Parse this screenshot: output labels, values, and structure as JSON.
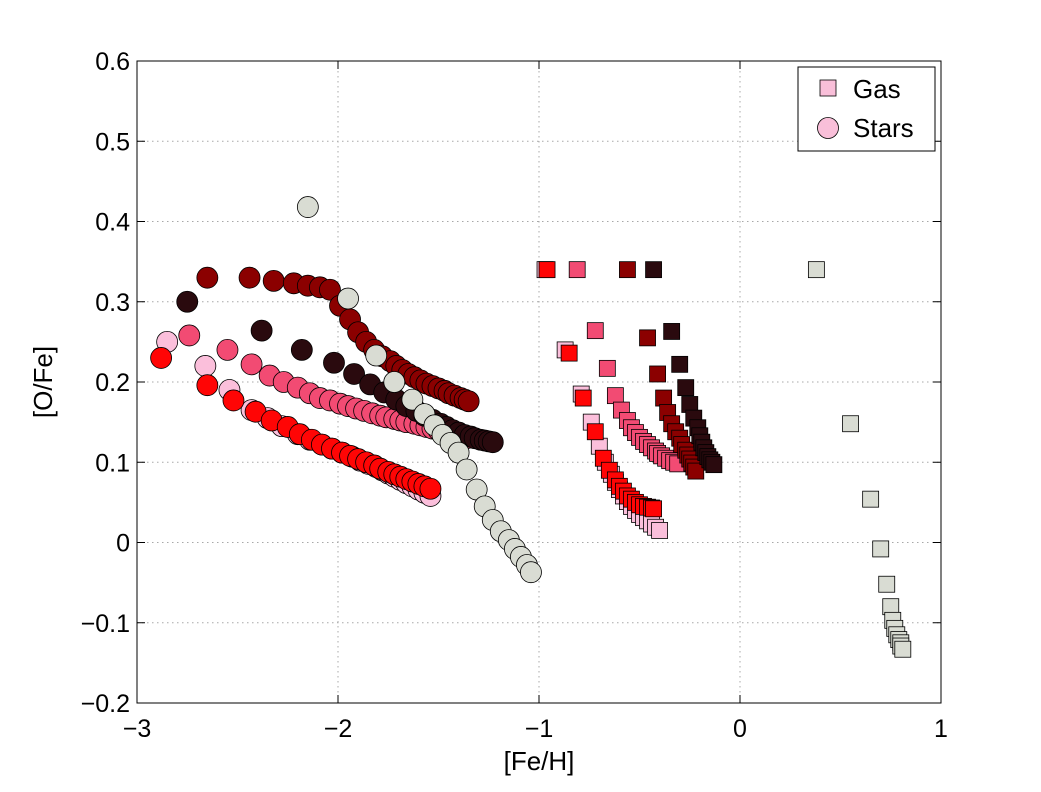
{
  "chart_data": {
    "type": "scatter",
    "title": "",
    "xlabel": "[Fe/H]",
    "ylabel": "[O/Fe]",
    "xlim": [
      -3,
      1
    ],
    "ylim": [
      -0.2,
      0.6
    ],
    "xticks": [
      -3,
      -2,
      -1,
      0,
      1
    ],
    "xtick_labels": [
      "−3",
      "−2",
      "−1",
      "0",
      "1"
    ],
    "yticks": [
      -0.2,
      -0.1,
      0,
      0.1,
      0.2,
      0.3,
      0.4,
      0.5,
      0.6
    ],
    "ytick_labels": [
      "−0.2",
      "−0.1",
      "0",
      "0.1",
      "0.2",
      "0.3",
      "0.4",
      "0.5",
      "0.6"
    ],
    "grid": true,
    "legend": {
      "placement": "top-right",
      "entries": [
        {
          "label": "Gas",
          "marker": "square",
          "color": "#f9bfd9"
        },
        {
          "label": "Stars",
          "marker": "circle",
          "color": "#f9bfd9"
        }
      ]
    },
    "series": [
      {
        "marker": "circle",
        "color": "#fbbfdb",
        "x": [
          -2.85,
          -2.66,
          -2.54,
          -2.43,
          -2.35,
          -2.28,
          -2.2,
          -2.14,
          -2.08,
          -2.03,
          -1.98,
          -1.93,
          -1.89,
          -1.85,
          -1.81,
          -1.78,
          -1.75,
          -1.72,
          -1.69,
          -1.66,
          -1.63,
          -1.6,
          -1.57,
          -1.54
        ],
        "y": [
          0.25,
          0.22,
          0.19,
          0.165,
          0.155,
          0.145,
          0.135,
          0.128,
          0.122,
          0.117,
          0.112,
          0.107,
          0.102,
          0.098,
          0.094,
          0.09,
          0.086,
          0.082,
          0.078,
          0.074,
          0.07,
          0.066,
          0.062,
          0.058
        ]
      },
      {
        "marker": "circle",
        "color": "#ff0505",
        "x": [
          -2.88,
          -2.65,
          -2.52,
          -2.41,
          -2.33,
          -2.25,
          -2.19,
          -2.13,
          -2.08,
          -2.03,
          -1.98,
          -1.94,
          -1.9,
          -1.86,
          -1.82,
          -1.79,
          -1.75,
          -1.72,
          -1.69,
          -1.66,
          -1.63,
          -1.6,
          -1.57,
          -1.54
        ],
        "y": [
          0.23,
          0.196,
          0.177,
          0.163,
          0.152,
          0.144,
          0.135,
          0.128,
          0.122,
          0.117,
          0.112,
          0.108,
          0.104,
          0.1,
          0.096,
          0.092,
          0.088,
          0.085,
          0.082,
          0.079,
          0.076,
          0.073,
          0.07,
          0.067
        ]
      },
      {
        "marker": "circle",
        "color": "#f24b73",
        "x": [
          -2.74,
          -2.55,
          -2.43,
          -2.34,
          -2.27,
          -2.2,
          -2.14,
          -2.09,
          -2.04,
          -1.99,
          -1.95,
          -1.91,
          -1.87,
          -1.83,
          -1.79,
          -1.76,
          -1.72,
          -1.69,
          -1.66,
          -1.62,
          -1.59,
          -1.56,
          -1.53,
          -1.5,
          -1.47,
          -1.44,
          -1.41,
          -1.38,
          -1.36
        ],
        "y": [
          0.258,
          0.24,
          0.222,
          0.208,
          0.2,
          0.193,
          0.186,
          0.18,
          0.177,
          0.173,
          0.17,
          0.167,
          0.164,
          0.161,
          0.158,
          0.156,
          0.154,
          0.152,
          0.15,
          0.148,
          0.146,
          0.144,
          0.142,
          0.14,
          0.138,
          0.136,
          0.134,
          0.132,
          0.13
        ]
      },
      {
        "marker": "circle",
        "color": "#8b0000",
        "x": [
          -2.65,
          -2.44,
          -2.32,
          -2.22,
          -2.15,
          -2.09,
          -2.04,
          -1.99,
          -1.94,
          -1.9,
          -1.86,
          -1.82,
          -1.78,
          -1.74,
          -1.71,
          -1.68,
          -1.65,
          -1.62,
          -1.59,
          -1.56,
          -1.53,
          -1.5,
          -1.47,
          -1.45,
          -1.42,
          -1.39,
          -1.37,
          -1.35
        ],
        "y": [
          0.33,
          0.33,
          0.326,
          0.323,
          0.32,
          0.318,
          0.315,
          0.295,
          0.278,
          0.262,
          0.25,
          0.24,
          0.232,
          0.226,
          0.22,
          0.215,
          0.21,
          0.206,
          0.202,
          0.198,
          0.195,
          0.192,
          0.189,
          0.186,
          0.183,
          0.18,
          0.178,
          0.176
        ]
      },
      {
        "marker": "circle",
        "color": "#2a0a0e",
        "x": [
          -2.75,
          -2.38,
          -2.18,
          -2.02,
          -1.92,
          -1.84,
          -1.77,
          -1.71,
          -1.66,
          -1.61,
          -1.57,
          -1.53,
          -1.49,
          -1.46,
          -1.43,
          -1.4,
          -1.37,
          -1.34,
          -1.32,
          -1.29,
          -1.27,
          -1.25,
          -1.23
        ],
        "y": [
          0.3,
          0.264,
          0.24,
          0.224,
          0.21,
          0.197,
          0.187,
          0.178,
          0.17,
          0.164,
          0.158,
          0.153,
          0.148,
          0.144,
          0.14,
          0.137,
          0.134,
          0.132,
          0.13,
          0.128,
          0.127,
          0.126,
          0.125
        ]
      },
      {
        "marker": "circle",
        "color": "#d9dcd3",
        "x": [
          -2.15,
          -1.95,
          -1.81,
          -1.72,
          -1.63,
          -1.57,
          -1.52,
          -1.48,
          -1.44,
          -1.4,
          -1.36,
          -1.31,
          -1.27,
          -1.23,
          -1.19,
          -1.15,
          -1.12,
          -1.09,
          -1.06,
          -1.04
        ],
        "y": [
          0.418,
          0.304,
          0.233,
          0.2,
          0.178,
          0.16,
          0.146,
          0.134,
          0.124,
          0.112,
          0.091,
          0.066,
          0.045,
          0.028,
          0.014,
          0.003,
          -0.008,
          -0.018,
          -0.028,
          -0.037
        ]
      },
      {
        "marker": "square",
        "color": "#fbbfdb",
        "x": [
          -0.97,
          -0.87,
          -0.79,
          -0.74,
          -0.7,
          -0.67,
          -0.64,
          -0.62,
          -0.6,
          -0.58,
          -0.56,
          -0.54,
          -0.52,
          -0.5,
          -0.48,
          -0.46,
          -0.44,
          -0.42,
          -0.4
        ],
        "y": [
          0.34,
          0.24,
          0.185,
          0.15,
          0.12,
          0.1,
          0.085,
          0.075,
          0.066,
          0.058,
          0.051,
          0.045,
          0.04,
          0.035,
          0.031,
          0.027,
          0.023,
          0.019,
          0.015
        ]
      },
      {
        "marker": "square",
        "color": "#ff0505",
        "x": [
          -0.96,
          -0.85,
          -0.78,
          -0.72,
          -0.68,
          -0.65,
          -0.62,
          -0.6,
          -0.58,
          -0.56,
          -0.54,
          -0.52,
          -0.5,
          -0.48,
          -0.46,
          -0.44,
          -0.43
        ],
        "y": [
          0.34,
          0.236,
          0.18,
          0.138,
          0.105,
          0.09,
          0.078,
          0.07,
          0.064,
          0.058,
          0.054,
          0.05,
          0.047,
          0.045,
          0.044,
          0.043,
          0.042
        ]
      },
      {
        "marker": "square",
        "color": "#f24b73",
        "x": [
          -0.81,
          -0.72,
          -0.66,
          -0.62,
          -0.59,
          -0.56,
          -0.54,
          -0.52,
          -0.5,
          -0.48,
          -0.46,
          -0.44,
          -0.42,
          -0.41,
          -0.39,
          -0.37,
          -0.35,
          -0.33,
          -0.31
        ],
        "y": [
          0.34,
          0.264,
          0.217,
          0.183,
          0.165,
          0.152,
          0.143,
          0.137,
          0.131,
          0.126,
          0.122,
          0.118,
          0.114,
          0.111,
          0.108,
          0.105,
          0.102,
          0.1,
          0.098
        ]
      },
      {
        "marker": "square",
        "color": "#8b0000",
        "x": [
          -0.56,
          -0.46,
          -0.41,
          -0.38,
          -0.36,
          -0.34,
          -0.32,
          -0.3,
          -0.29,
          -0.27,
          -0.26,
          -0.25,
          -0.24,
          -0.23,
          -0.22
        ],
        "y": [
          0.34,
          0.255,
          0.21,
          0.18,
          0.162,
          0.148,
          0.138,
          0.13,
          0.122,
          0.115,
          0.109,
          0.104,
          0.099,
          0.094,
          0.089
        ]
      },
      {
        "marker": "square",
        "color": "#2a0a0e",
        "x": [
          -0.43,
          -0.34,
          -0.3,
          -0.27,
          -0.25,
          -0.23,
          -0.21,
          -0.2,
          -0.19,
          -0.18,
          -0.17,
          -0.16,
          -0.15,
          -0.14,
          -0.13
        ],
        "y": [
          0.34,
          0.263,
          0.222,
          0.193,
          0.172,
          0.155,
          0.143,
          0.133,
          0.125,
          0.118,
          0.112,
          0.107,
          0.103,
          0.1,
          0.097
        ]
      },
      {
        "marker": "square",
        "color": "#d9dcd3",
        "x": [
          0.38,
          0.55,
          0.65,
          0.7,
          0.73,
          0.75,
          0.76,
          0.77,
          0.78,
          0.79,
          0.8,
          0.8,
          0.81
        ],
        "y": [
          0.34,
          0.148,
          0.054,
          -0.008,
          -0.052,
          -0.08,
          -0.097,
          -0.107,
          -0.115,
          -0.121,
          -0.125,
          -0.129,
          -0.133
        ]
      }
    ]
  }
}
